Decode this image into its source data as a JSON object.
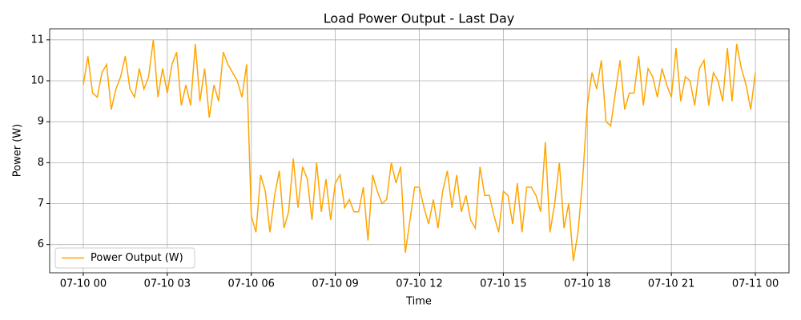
{
  "chart_data": {
    "type": "line",
    "title": "Load Power Output - Last Day",
    "x_label": "Time",
    "y_label": "Power (W)",
    "x": [
      0,
      10,
      20,
      30,
      40,
      50,
      60,
      70,
      80,
      90,
      100,
      110,
      120,
      130,
      140,
      150,
      160,
      170,
      180,
      190,
      200,
      210,
      220,
      230,
      240,
      250,
      260,
      270,
      280,
      290,
      300,
      310,
      320,
      330,
      340,
      350,
      360,
      370,
      380,
      390,
      400,
      410,
      420,
      430,
      440,
      450,
      460,
      470,
      480,
      490,
      500,
      510,
      520,
      530,
      540,
      550,
      560,
      570,
      580,
      590,
      600,
      610,
      620,
      630,
      640,
      650,
      660,
      670,
      680,
      690,
      700,
      710,
      720,
      730,
      740,
      750,
      760,
      770,
      780,
      790,
      800,
      810,
      820,
      830,
      840,
      850,
      860,
      870,
      880,
      890,
      900,
      910,
      920,
      930,
      940,
      950,
      960,
      970,
      980,
      990,
      1000,
      1010,
      1020,
      1030,
      1040,
      1050,
      1060,
      1070,
      1080,
      1090,
      1100,
      1110,
      1120,
      1130,
      1140,
      1150,
      1160,
      1170,
      1180,
      1190,
      1200,
      1210,
      1220,
      1230,
      1240,
      1250,
      1260,
      1270,
      1280,
      1290,
      1300,
      1310,
      1320,
      1330,
      1340,
      1350,
      1360,
      1370,
      1380,
      1390,
      1400,
      1410,
      1420,
      1430,
      1440
    ],
    "series": [
      {
        "name": "Power Output (W)",
        "color": "#ffa500",
        "values": [
          9.9,
          10.6,
          9.7,
          9.6,
          10.2,
          10.4,
          9.3,
          9.8,
          10.1,
          10.6,
          9.8,
          9.6,
          10.3,
          9.8,
          10.1,
          11.0,
          9.6,
          10.3,
          9.7,
          10.4,
          10.7,
          9.4,
          9.9,
          9.4,
          10.9,
          9.5,
          10.3,
          9.1,
          9.9,
          9.5,
          10.7,
          10.4,
          10.2,
          10.0,
          9.6,
          10.4,
          6.7,
          6.3,
          7.7,
          7.3,
          6.3,
          7.2,
          7.8,
          6.4,
          6.8,
          8.1,
          6.9,
          7.9,
          7.6,
          6.6,
          8.0,
          6.8,
          7.6,
          6.6,
          7.5,
          7.7,
          6.9,
          7.1,
          6.8,
          6.8,
          7.4,
          6.1,
          7.7,
          7.3,
          7.0,
          7.1,
          8.0,
          7.5,
          7.9,
          5.8,
          6.6,
          7.4,
          7.4,
          6.9,
          6.5,
          7.1,
          6.4,
          7.3,
          7.8,
          6.9,
          7.7,
          6.8,
          7.2,
          6.6,
          6.4,
          7.9,
          7.2,
          7.2,
          6.7,
          6.3,
          7.3,
          7.2,
          6.5,
          7.5,
          6.3,
          7.4,
          7.4,
          7.2,
          6.8,
          8.5,
          6.3,
          7.0,
          8.0,
          6.4,
          7.0,
          5.6,
          6.3,
          7.6,
          9.4,
          10.2,
          9.8,
          10.5,
          9.0,
          8.9,
          9.7,
          10.5,
          9.3,
          9.7,
          9.7,
          10.6,
          9.4,
          10.3,
          10.1,
          9.6,
          10.3,
          9.9,
          9.6,
          10.8,
          9.5,
          10.1,
          10.0,
          9.4,
          10.3,
          10.5,
          9.4,
          10.2,
          10.0,
          9.5,
          10.8,
          9.5,
          10.9,
          10.3,
          9.9,
          9.3,
          10.2
        ]
      }
    ],
    "xlim": [
      -72,
      1512
    ],
    "xticks": [
      {
        "value": 0,
        "label": "07-10 00"
      },
      {
        "value": 180,
        "label": "07-10 03"
      },
      {
        "value": 360,
        "label": "07-10 06"
      },
      {
        "value": 540,
        "label": "07-10 09"
      },
      {
        "value": 720,
        "label": "07-10 12"
      },
      {
        "value": 900,
        "label": "07-10 15"
      },
      {
        "value": 1080,
        "label": "07-10 18"
      },
      {
        "value": 1260,
        "label": "07-10 21"
      },
      {
        "value": 1440,
        "label": "07-11 00"
      }
    ],
    "ylim": [
      5.31,
      11.27
    ],
    "yticks": [
      6,
      7,
      8,
      9,
      10,
      11
    ],
    "grid": true,
    "legend": "lower left"
  }
}
